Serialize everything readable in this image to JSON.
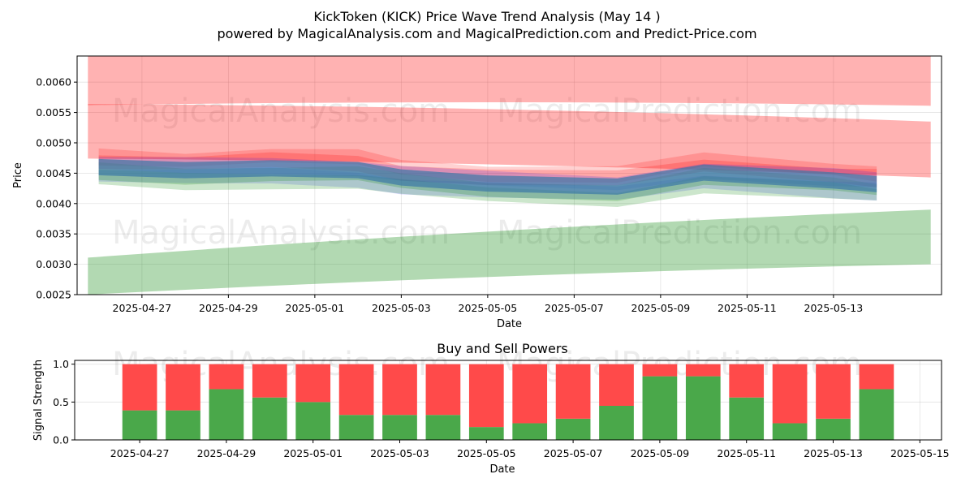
{
  "title_line1": "KickToken (KICK) Price Wave Trend Analysis (May 14 )",
  "title_line2": "powered by MagicalAnalysis.com and MagicalPrediction.com and Predict-Price.com",
  "watermarks": [
    "MagicalAnalysis.com",
    "MagicalPrediction.com"
  ],
  "colors": {
    "red_band": "#ff0000",
    "green_band": "#008000",
    "blue_band": "#0000ff",
    "buy": "#4aa84a",
    "sell": "#ff4a4a"
  },
  "chart_data": [
    {
      "type": "area",
      "title": "",
      "xlabel": "Date",
      "ylabel": "Price",
      "xlim": [
        "2025-04-25T12:00",
        "2025-05-15T12:00"
      ],
      "ylim": [
        0.0025,
        0.00643
      ],
      "grid": true,
      "x_ticks": [
        "2025-04-27",
        "2025-04-29",
        "2025-05-01",
        "2025-05-03",
        "2025-05-05",
        "2025-05-07",
        "2025-05-09",
        "2025-05-11",
        "2025-05-13"
      ],
      "y_ticks": [
        "0.0025",
        "0.0030",
        "0.0035",
        "0.0040",
        "0.0045",
        "0.0050",
        "0.0055",
        "0.0060"
      ],
      "bands": [
        {
          "color": "red",
          "x": [
            "2025-04-25T18:00",
            "2025-05-15T06:00"
          ],
          "upper": [
            0.00643,
            0.00643
          ],
          "lower": [
            0.00562,
            0.00561
          ]
        },
        {
          "color": "red",
          "x": [
            "2025-04-25T18:00",
            "2025-05-15T06:00"
          ],
          "upper": [
            0.00564,
            0.00535
          ],
          "lower": [
            0.00474,
            0.00443
          ]
        },
        {
          "color": "green",
          "x": [
            "2025-04-25T18:00",
            "2025-05-15T06:00"
          ],
          "upper": [
            0.00311,
            0.0039
          ],
          "lower": [
            0.0025,
            0.003
          ]
        }
      ],
      "series": [
        {
          "x": [
            "2025-04-26",
            "2025-04-28",
            "2025-04-30",
            "2025-05-02",
            "2025-05-03",
            "2025-05-05",
            "2025-05-08",
            "2025-05-10",
            "2025-05-13",
            "2025-05-14"
          ],
          "values": [
            0.0046,
            0.00455,
            0.00458,
            0.00455,
            0.00443,
            0.00433,
            0.00428,
            0.00451,
            0.00438,
            0.00432
          ]
        }
      ]
    },
    {
      "type": "bar",
      "title": "Buy and Sell Powers",
      "xlabel": "Date",
      "ylabel": "Signal Strength",
      "ylim": [
        0,
        1.05
      ],
      "grid": true,
      "x_ticks": [
        "2025-04-27",
        "2025-04-29",
        "2025-05-01",
        "2025-05-03",
        "2025-05-05",
        "2025-05-07",
        "2025-05-09",
        "2025-05-11",
        "2025-05-13",
        "2025-05-15"
      ],
      "y_ticks": [
        "0.0",
        "0.5",
        "1.0"
      ],
      "categories": [
        "2025-04-27",
        "2025-04-28",
        "2025-04-29",
        "2025-04-30",
        "2025-05-01",
        "2025-05-02",
        "2025-05-03",
        "2025-05-04",
        "2025-05-05",
        "2025-05-06",
        "2025-05-07",
        "2025-05-08",
        "2025-05-09",
        "2025-05-10",
        "2025-05-11",
        "2025-05-12",
        "2025-05-13",
        "2025-05-14"
      ],
      "series": [
        {
          "color": "buy",
          "values": [
            0.39,
            0.39,
            0.67,
            0.56,
            0.5,
            0.33,
            0.33,
            0.33,
            0.17,
            0.22,
            0.28,
            0.45,
            0.84,
            0.84,
            0.56,
            0.22,
            0.28,
            0.67
          ]
        },
        {
          "color": "sell",
          "values": [
            0.61,
            0.61,
            0.33,
            0.44,
            0.5,
            0.67,
            0.67,
            0.67,
            0.83,
            0.78,
            0.72,
            0.55,
            0.16,
            0.16,
            0.44,
            0.78,
            0.72,
            0.33
          ]
        }
      ]
    }
  ]
}
